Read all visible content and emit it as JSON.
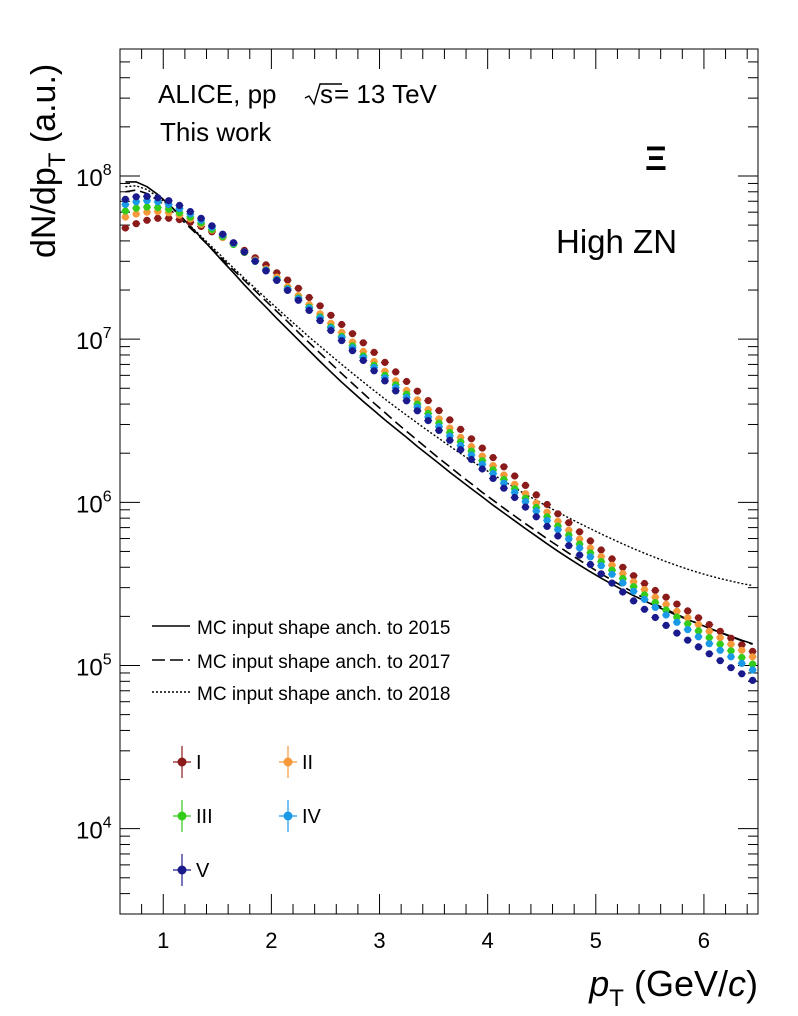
{
  "chart_data": {
    "type": "scatter",
    "xlabel": "p",
    "xlabel_sub": "T",
    "xlabel_unit_open": " (GeV/",
    "xlabel_unit_c": "c",
    "xlabel_unit_close": ")",
    "ylabel": "dN/dp",
    "ylabel_sub": "T",
    "ylabel_unit": " (a.u.)",
    "xlim": [
      0.6,
      6.5
    ],
    "ylim": [
      3000,
      600000000
    ],
    "yscale": "log",
    "x_ticks": [
      1,
      2,
      3,
      4,
      5,
      6
    ],
    "y_ticks": [
      {
        "base": "10",
        "exp": "4",
        "value": 10000
      },
      {
        "base": "10",
        "exp": "5",
        "value": 100000
      },
      {
        "base": "10",
        "exp": "6",
        "value": 1000000
      },
      {
        "base": "10",
        "exp": "7",
        "value": 10000000
      },
      {
        "base": "10",
        "exp": "8",
        "value": 100000000
      }
    ],
    "annotations": {
      "line1_left": "ALICE, pp ",
      "line1_sqrt_s": "s",
      "line1_right": " = 13 TeV",
      "line2": "This work",
      "particle": "Ξ",
      "selection": "High ZN"
    },
    "legend_placement": "bottom-left",
    "mc_legend": [
      {
        "label": "MC input shape anch. to 2015",
        "style": "solid"
      },
      {
        "label": "MC input shape anch. to 2017",
        "style": "dashed"
      },
      {
        "label": "MC input shape anch. to 2018",
        "style": "dotted"
      }
    ],
    "x": [
      0.65,
      0.75,
      0.85,
      0.95,
      1.05,
      1.15,
      1.25,
      1.35,
      1.45,
      1.55,
      1.65,
      1.75,
      1.85,
      1.95,
      2.05,
      2.15,
      2.25,
      2.35,
      2.45,
      2.55,
      2.65,
      2.75,
      2.85,
      2.95,
      3.05,
      3.15,
      3.25,
      3.35,
      3.45,
      3.55,
      3.65,
      3.75,
      3.85,
      3.95,
      4.05,
      4.15,
      4.25,
      4.35,
      4.45,
      4.55,
      4.65,
      4.75,
      4.85,
      4.95,
      5.05,
      5.15,
      5.25,
      5.35,
      5.45,
      5.55,
      5.65,
      5.75,
      5.85,
      5.95,
      6.05,
      6.15,
      6.25,
      6.35,
      6.45
    ],
    "series": [
      {
        "name": "I",
        "color": "#8b1a1a",
        "values": [
          48000000,
          51000000,
          53500000,
          55000000,
          55000000,
          54000000,
          52000000,
          49000000,
          45500000,
          42000000,
          38500000,
          35000000,
          31500000,
          28500000,
          25500000,
          23000000,
          20500000,
          18000000,
          16000000,
          14000000,
          12300000,
          10800000,
          9500000,
          8300000,
          7200000,
          6300000,
          5500000,
          4800000,
          4200000,
          3650000,
          3200000,
          2800000,
          2450000,
          2150000,
          1880000,
          1650000,
          1450000,
          1270000,
          1110000,
          970000,
          850000,
          750000,
          660000,
          580000,
          510000,
          450000,
          400000,
          355000,
          318000,
          288000,
          262000,
          238000,
          216000,
          196000,
          178000,
          162000,
          147000,
          134000,
          122000
        ]
      },
      {
        "name": "II",
        "color": "#f5993a",
        "values": [
          56000000,
          58500000,
          60000000,
          60500000,
          59500000,
          57500000,
          54500000,
          50500000,
          46500000,
          42000000,
          38000000,
          34000000,
          30500000,
          27000000,
          24000000,
          21000000,
          18500000,
          16300000,
          14300000,
          12500000,
          11000000,
          9600000,
          8400000,
          7300000,
          6350000,
          5550000,
          4850000,
          4250000,
          3700000,
          3250000,
          2850000,
          2500000,
          2200000,
          1920000,
          1680000,
          1470000,
          1290000,
          1130000,
          990000,
          870000,
          765000,
          675000,
          595000,
          525000,
          465000,
          412000,
          366000,
          326000,
          292000,
          262000,
          237000,
          215000,
          196000,
          178000,
          162000,
          148000,
          135000,
          124000,
          113000
        ]
      },
      {
        "name": "III",
        "color": "#33cc1a",
        "values": [
          61000000,
          63500000,
          64500000,
          64000000,
          62500000,
          59500000,
          56000000,
          51500000,
          47000000,
          42500000,
          38000000,
          34000000,
          30000000,
          26500000,
          23300000,
          20400000,
          17900000,
          15700000,
          13700000,
          11900000,
          10400000,
          9100000,
          7900000,
          6900000,
          6000000,
          5250000,
          4600000,
          4000000,
          3500000,
          3060000,
          2680000,
          2350000,
          2060000,
          1800000,
          1580000,
          1380000,
          1210000,
          1060000,
          930000,
          815000,
          715000,
          630000,
          555000,
          490000,
          433000,
          384000,
          341000,
          304000,
          271000,
          243000,
          219000,
          198000,
          180000,
          163000,
          148000,
          135000,
          123000,
          112000,
          102000
        ]
      },
      {
        "name": "IV",
        "color": "#1a99e6",
        "values": [
          67000000,
          69500000,
          70500000,
          69500000,
          67000000,
          63000000,
          58500000,
          53500000,
          48500000,
          43500000,
          38700000,
          34300000,
          30200000,
          26500000,
          23200000,
          20300000,
          17700000,
          15500000,
          13500000,
          11700000,
          10200000,
          8850000,
          7700000,
          6700000,
          5800000,
          5050000,
          4400000,
          3830000,
          3340000,
          2910000,
          2550000,
          2230000,
          1950000,
          1710000,
          1500000,
          1310000,
          1150000,
          1010000,
          885000,
          775000,
          680000,
          597000,
          525000,
          463000,
          409000,
          362000,
          321000,
          285000,
          254000,
          227000,
          204000,
          184000,
          166000,
          150000,
          136000,
          124000,
          113000,
          103000,
          94000
        ]
      },
      {
        "name": "V",
        "color": "#1a1a8c",
        "values": [
          72000000,
          74500000,
          75000000,
          73500000,
          70500000,
          66000000,
          60500000,
          55000000,
          49500000,
          44000000,
          39000000,
          34200000,
          30000000,
          26200000,
          22900000,
          19900000,
          17300000,
          15000000,
          13000000,
          11300000,
          9800000,
          8500000,
          7400000,
          6400000,
          5550000,
          4820000,
          4190000,
          3640000,
          3170000,
          2760000,
          2400000,
          2100000,
          1830000,
          1600000,
          1400000,
          1220000,
          1070000,
          935000,
          815000,
          712000,
          622000,
          543000,
          475000,
          416000,
          365000,
          320000,
          282000,
          249000,
          221000,
          197000,
          176000,
          158000,
          143000,
          130000,
          118000,
          107000,
          97000,
          89000,
          81000
        ]
      }
    ],
    "mc_curves": [
      {
        "name": "MC 2015",
        "style": "solid",
        "values": [
          92000000,
          92000000,
          86000000,
          77000000,
          67000000,
          58000000,
          49000000,
          42000000,
          35500000,
          30000000,
          25500000,
          21500000,
          18300000,
          15700000,
          13400000,
          11500000,
          9900000,
          8500000,
          7300000,
          6300000,
          5450000,
          4750000,
          4150000,
          3650000,
          3200000,
          2830000,
          2500000,
          2200000,
          1950000,
          1730000,
          1530000,
          1360000,
          1210000,
          1080000,
          960000,
          860000,
          770000,
          690000,
          620000,
          557000,
          502000,
          454000,
          412000,
          375000,
          343000,
          315000,
          290000,
          268000,
          249000,
          232000,
          217000,
          203000,
          191000,
          180000,
          169000,
          160000,
          151000,
          143000,
          136000
        ]
      },
      {
        "name": "MC 2017",
        "style": "dashed",
        "values": [
          80000000,
          82000000,
          78000000,
          71000000,
          63000000,
          55500000,
          48000000,
          41500000,
          35800000,
          30800000,
          26500000,
          22900000,
          19800000,
          17100000,
          14800000,
          12800000,
          11000000,
          9500000,
          8200000,
          7100000,
          6150000,
          5350000,
          4650000,
          4050000,
          3550000,
          3100000,
          2720000,
          2400000,
          2110000,
          1860000,
          1650000,
          1460000,
          1300000,
          1150000,
          1030000,
          920000,
          825000,
          740000,
          665000,
          598000,
          540000,
          488000,
          442000,
          401000,
          365000,
          333000,
          305000,
          280000,
          258000,
          238000,
          221000,
          206000,
          192000,
          180000,
          169000,
          159000,
          150000,
          142000,
          135000
        ]
      },
      {
        "name": "MC 2018",
        "style": "dotted",
        "values": [
          86000000,
          87000000,
          82500000,
          74500000,
          66000000,
          57500000,
          49500000,
          42700000,
          36800000,
          31700000,
          27300000,
          23600000,
          20500000,
          17800000,
          15500000,
          13500000,
          11800000,
          10300000,
          9050000,
          7950000,
          7000000,
          6180000,
          5460000,
          4840000,
          4300000,
          3830000,
          3420000,
          3060000,
          2740000,
          2460000,
          2210000,
          1990000,
          1800000,
          1630000,
          1480000,
          1350000,
          1230000,
          1120000,
          1030000,
          945000,
          870000,
          803000,
          743000,
          689000,
          640000,
          596000,
          556000,
          520000,
          488000,
          459000,
          433000,
          410000,
          389000,
          371000,
          355000,
          341000,
          329000,
          318000,
          309000
        ]
      }
    ]
  }
}
